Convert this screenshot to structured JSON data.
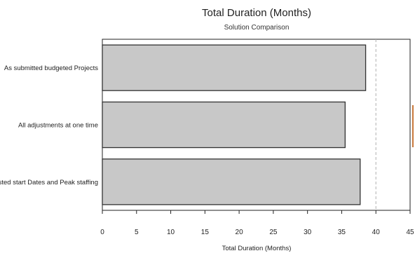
{
  "chart_data": {
    "type": "bar",
    "orientation": "horizontal",
    "title": "Total Duration (Months)",
    "subtitle": "Solution Comparison",
    "xlabel": "Total Duration (Months)",
    "ylabel": "",
    "categories": [
      "As submitted budgeted Projects",
      "All adjustments at one time",
      "Adjusted start Dates and Peak staffing"
    ],
    "values": [
      38.5,
      35.5,
      37.7
    ],
    "xlim": [
      0,
      45
    ],
    "xticks": [
      0,
      5,
      10,
      15,
      20,
      25,
      30,
      35,
      40,
      45
    ],
    "gridlines_at": [
      40
    ],
    "grid": "dashed vertical line",
    "legend": "none",
    "colors": {
      "bar_fill": "#c8c8c8",
      "bar_stroke": "#333333",
      "grid": "#b0b0b0",
      "axis": "#222222",
      "edge_marker": "#c8783c"
    }
  }
}
